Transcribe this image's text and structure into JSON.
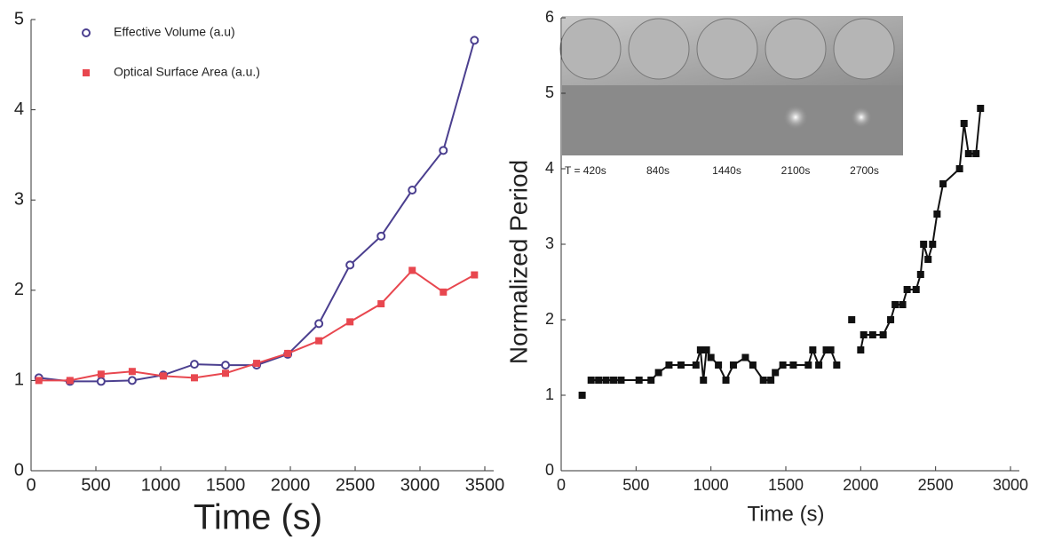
{
  "chart_data": [
    {
      "type": "line",
      "x_label": "Time (s)",
      "x": [
        60,
        300,
        540,
        780,
        1020,
        1260,
        1500,
        1740,
        1980,
        2220,
        2460,
        2700,
        2940,
        3180,
        3420
      ],
      "series": [
        {
          "name": "Effective Volume (a.u)",
          "color": "#4b3f8f",
          "marker": "circle",
          "values": [
            1.03,
            0.99,
            0.99,
            1.0,
            1.06,
            1.18,
            1.17,
            1.17,
            1.29,
            1.63,
            2.28,
            2.6,
            3.11,
            3.55,
            4.77
          ]
        },
        {
          "name": "Optical Surface Area (a.u.)",
          "color": "#e8474f",
          "marker": "square",
          "values": [
            1.0,
            1.0,
            1.07,
            1.1,
            1.05,
            1.03,
            1.08,
            1.19,
            1.3,
            1.44,
            1.65,
            1.85,
            2.22,
            1.98,
            2.17
          ]
        }
      ],
      "xlim": [
        0,
        3500
      ],
      "xticks": [
        0,
        500,
        1000,
        1500,
        2000,
        2500,
        3000,
        3500
      ],
      "ylim": [
        0,
        5
      ],
      "yticks": [
        0,
        1,
        2,
        3,
        4,
        5
      ],
      "legend": "upper-left"
    },
    {
      "type": "line",
      "x_label": "Time (s)",
      "y_label": "Normalized Period",
      "image_labels": [
        "T = 420s",
        "840s",
        "1440s",
        "2100s",
        "2700s"
      ],
      "x": [
        140,
        null,
        200,
        250,
        300,
        350,
        400,
        520,
        600,
        650,
        720,
        800,
        900,
        930,
        950,
        970,
        1000,
        1050,
        1100,
        1150,
        1230,
        1280,
        1350,
        1400,
        1430,
        1480,
        1550,
        1650,
        1680,
        1720,
        1770,
        1800,
        1840,
        null,
        1940,
        null,
        2000,
        2020,
        2080,
        2150,
        2200,
        2230,
        2280,
        2310,
        2370,
        2400,
        2420,
        2450,
        2480,
        2510,
        2550,
        2660,
        2690,
        2720,
        2770,
        2800
      ],
      "series": [
        {
          "color": "#111111",
          "marker": "square",
          "values": [
            1.0,
            null,
            1.2,
            1.2,
            1.2,
            1.2,
            1.2,
            1.2,
            1.2,
            1.3,
            1.4,
            1.4,
            1.4,
            1.6,
            1.2,
            1.6,
            1.5,
            1.4,
            1.2,
            1.4,
            1.5,
            1.4,
            1.2,
            1.2,
            1.3,
            1.4,
            1.4,
            1.4,
            1.6,
            1.4,
            1.6,
            1.6,
            1.4,
            null,
            2.0,
            null,
            1.6,
            1.8,
            1.8,
            1.8,
            2.0,
            2.2,
            2.2,
            2.4,
            2.4,
            2.6,
            3.0,
            2.8,
            3.0,
            3.4,
            3.8,
            4.0,
            4.6,
            4.2,
            4.2,
            4.8
          ]
        }
      ],
      "xlim": [
        0,
        3000
      ],
      "xticks": [
        0,
        500,
        1000,
        1500,
        2000,
        2500,
        3000
      ],
      "ylim": [
        0,
        6
      ],
      "yticks": [
        0,
        1,
        2,
        3,
        4,
        5,
        6
      ]
    }
  ]
}
